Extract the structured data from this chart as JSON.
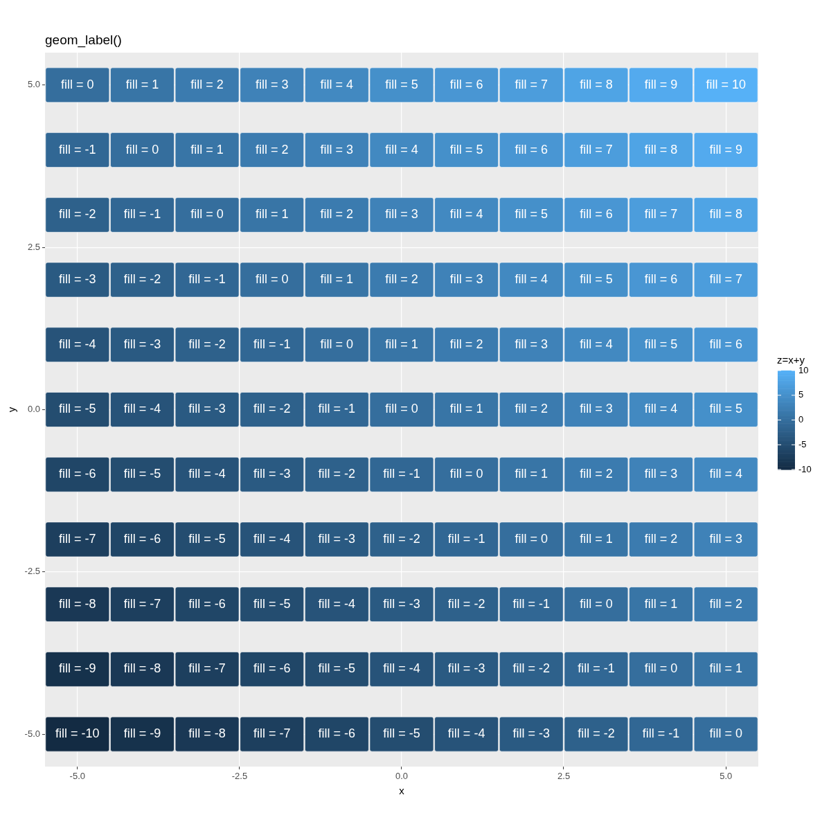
{
  "chart_data": {
    "type": "heatmap",
    "title": "geom_label()",
    "xlabel": "x",
    "ylabel": "y",
    "clabel": "z=x+y",
    "xlim": [
      -5.5,
      5.5
    ],
    "ylim": [
      -5.5,
      5.5
    ],
    "xticks": [
      {
        "value": -5,
        "label": "-5.0"
      },
      {
        "value": -2.5,
        "label": "-2.5"
      },
      {
        "value": 0,
        "label": "0.0"
      },
      {
        "value": 2.5,
        "label": "2.5"
      },
      {
        "value": 5,
        "label": "5.0"
      }
    ],
    "yticks": [
      {
        "value": -5,
        "label": "-5.0"
      },
      {
        "value": -2.5,
        "label": "-2.5"
      },
      {
        "value": 0,
        "label": "0.0"
      },
      {
        "value": 2.5,
        "label": "2.5"
      },
      {
        "value": 5,
        "label": "5.0"
      }
    ],
    "clim": [
      -10,
      10
    ],
    "cticks": [
      -10,
      -5,
      0,
      5,
      10
    ],
    "grid": true,
    "x": [
      -5,
      -4,
      -3,
      -2,
      -1,
      0,
      1,
      2,
      3,
      4,
      5
    ],
    "y": [
      5,
      4,
      3,
      2,
      1,
      0,
      -1,
      -2,
      -3,
      -4,
      -5
    ],
    "cells": [
      [
        0,
        1,
        2,
        3,
        4,
        5,
        6,
        7,
        8,
        9,
        10
      ],
      [
        -1,
        0,
        1,
        2,
        3,
        4,
        5,
        6,
        7,
        8,
        9
      ],
      [
        -2,
        -1,
        0,
        1,
        2,
        3,
        4,
        5,
        6,
        7,
        8
      ],
      [
        -3,
        -2,
        -1,
        0,
        1,
        2,
        3,
        4,
        5,
        6,
        7
      ],
      [
        -4,
        -3,
        -2,
        -1,
        0,
        1,
        2,
        3,
        4,
        5,
        6
      ],
      [
        -5,
        -4,
        -3,
        -2,
        -1,
        0,
        1,
        2,
        3,
        4,
        5
      ],
      [
        -6,
        -5,
        -4,
        -3,
        -2,
        -1,
        0,
        1,
        2,
        3,
        4
      ],
      [
        -7,
        -6,
        -5,
        -4,
        -3,
        -2,
        -1,
        0,
        1,
        2,
        3
      ],
      [
        -8,
        -7,
        -6,
        -5,
        -4,
        -3,
        -2,
        -1,
        0,
        1,
        2
      ],
      [
        -9,
        -8,
        -7,
        -6,
        -5,
        -4,
        -3,
        -2,
        -1,
        0,
        1
      ],
      [
        -10,
        -9,
        -8,
        -7,
        -6,
        -5,
        -4,
        -3,
        -2,
        -1,
        0
      ]
    ],
    "cell_labels": [
      [
        "fill = 0",
        "fill = 1",
        "fill = 2",
        "fill = 3",
        "fill = 4",
        "fill = 5",
        "fill = 6",
        "fill = 7",
        "fill = 8",
        "fill = 9",
        "fill = 10"
      ],
      [
        "fill = -1",
        "fill = 0",
        "fill = 1",
        "fill = 2",
        "fill = 3",
        "fill = 4",
        "fill = 5",
        "fill = 6",
        "fill = 7",
        "fill = 8",
        "fill = 9"
      ],
      [
        "fill = -2",
        "fill = -1",
        "fill = 0",
        "fill = 1",
        "fill = 2",
        "fill = 3",
        "fill = 4",
        "fill = 5",
        "fill = 6",
        "fill = 7",
        "fill = 8"
      ],
      [
        "fill = -3",
        "fill = -2",
        "fill = -1",
        "fill = 0",
        "fill = 1",
        "fill = 2",
        "fill = 3",
        "fill = 4",
        "fill = 5",
        "fill = 6",
        "fill = 7"
      ],
      [
        "fill = -4",
        "fill = -3",
        "fill = -2",
        "fill = -1",
        "fill = 0",
        "fill = 1",
        "fill = 2",
        "fill = 3",
        "fill = 4",
        "fill = 5",
        "fill = 6"
      ],
      [
        "fill = -5",
        "fill = -4",
        "fill = -3",
        "fill = -2",
        "fill = -1",
        "fill = 0",
        "fill = 1",
        "fill = 2",
        "fill = 3",
        "fill = 4",
        "fill = 5"
      ],
      [
        "fill = -6",
        "fill = -5",
        "fill = -4",
        "fill = -3",
        "fill = -2",
        "fill = -1",
        "fill = 0",
        "fill = 1",
        "fill = 2",
        "fill = 3",
        "fill = 4"
      ],
      [
        "fill = -7",
        "fill = -6",
        "fill = -5",
        "fill = -4",
        "fill = -3",
        "fill = -2",
        "fill = -1",
        "fill = 0",
        "fill = 1",
        "fill = 2",
        "fill = 3"
      ],
      [
        "fill = -8",
        "fill = -7",
        "fill = -6",
        "fill = -5",
        "fill = -4",
        "fill = -3",
        "fill = -2",
        "fill = -1",
        "fill = 0",
        "fill = 1",
        "fill = 2"
      ],
      [
        "fill = -9",
        "fill = -8",
        "fill = -7",
        "fill = -6",
        "fill = -5",
        "fill = -4",
        "fill = -3",
        "fill = -2",
        "fill = -1",
        "fill = 0",
        "fill = 1"
      ],
      [
        "fill = -10",
        "fill = -9",
        "fill = -8",
        "fill = -7",
        "fill = -6",
        "fill = -5",
        "fill = -4",
        "fill = -3",
        "fill = -2",
        "fill = -1",
        "fill = 0"
      ]
    ]
  }
}
